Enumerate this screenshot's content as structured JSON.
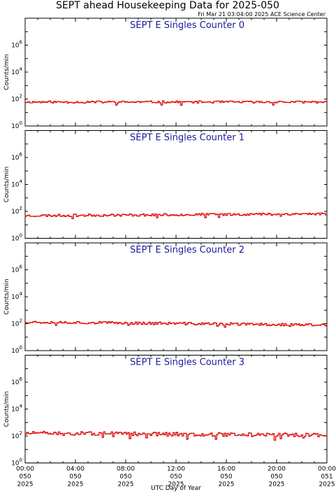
{
  "header": {
    "title": "SEPT ahead Housekeeping Data for 2025-050",
    "timestamp": "Fri Mar 21 03:04:00 2025 ACE Science Center"
  },
  "chart_data": {
    "type": "line",
    "x_axis": {
      "title": "UTC Day of Year",
      "tick_labels": [
        [
          "00:00",
          "050",
          "2025"
        ],
        [
          "04:00",
          "050",
          "2025"
        ],
        [
          "08:00",
          "050",
          "2025"
        ],
        [
          "12:00",
          "050",
          "2025"
        ],
        [
          "16:00",
          "050",
          "2025"
        ],
        [
          "20:00",
          "050",
          "2025"
        ],
        [
          "00:00",
          "051",
          "2025"
        ]
      ],
      "range_hours": [
        0,
        24
      ]
    },
    "y_axis": {
      "label": "Counts/min",
      "scale": "log",
      "range": [
        1,
        100000000
      ],
      "tick_labels": [
        {
          "base": "10",
          "exp": "0"
        },
        {
          "base": "10",
          "exp": "2"
        },
        {
          "base": "10",
          "exp": "4"
        },
        {
          "base": "10",
          "exp": "6"
        }
      ],
      "tick_values": [
        1,
        100,
        10000,
        1000000
      ]
    },
    "line_color": "#dd0000",
    "title_color": "#1a1a99",
    "panels": [
      {
        "title": "SEPT E Singles Counter 0",
        "approx_level": 60,
        "seed": 11,
        "trend": [
          0,
          0
        ],
        "spread": 0.08
      },
      {
        "title": "SEPT E Singles Counter 1",
        "approx_level": 55,
        "seed": 23,
        "trend": [
          -0.06,
          0.08
        ],
        "spread": 0.09
      },
      {
        "title": "SEPT E Singles Counter 2",
        "approx_level": 120,
        "seed": 37,
        "trend": [
          0.05,
          -0.18
        ],
        "spread": 0.1
      },
      {
        "title": "SEPT E Singles Counter 3",
        "approx_level": 150,
        "seed": 51,
        "trend": [
          0.04,
          -0.12
        ],
        "spread": 0.14
      }
    ]
  }
}
